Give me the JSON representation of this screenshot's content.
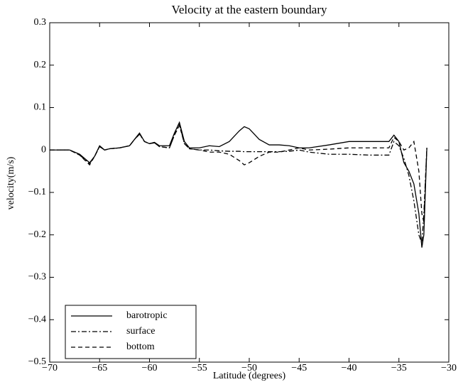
{
  "chart_data": {
    "type": "line",
    "title": "Velocity at the eastern boundary",
    "xlabel": "Latitude (degrees)",
    "ylabel": "velocity(m/s)",
    "x": [
      -70,
      -69,
      -68,
      -67,
      -66,
      -65.5,
      -65,
      -64.5,
      -64,
      -63,
      -62,
      -61.5,
      -61,
      -60.5,
      -60,
      -59.5,
      -59,
      -58,
      -57.5,
      -57,
      -56.5,
      -56,
      -55,
      -54,
      -53,
      -52,
      -51,
      -50.5,
      -50,
      -49,
      -48,
      -47,
      -46,
      -45,
      -44,
      -42,
      -40,
      -38,
      -36,
      -35.5,
      -35,
      -34.5,
      -34,
      -33.5,
      -33,
      -32.7,
      -32.5,
      -32.2
    ],
    "series": [
      {
        "name": "barotropic",
        "color": "#000000",
        "linestyle": "solid",
        "values": [
          0,
          0,
          0,
          -0.01,
          -0.03,
          -0.015,
          0.01,
          0,
          0.003,
          0.005,
          0.01,
          0.025,
          0.04,
          0.02,
          0.015,
          0.018,
          0.01,
          0.01,
          0.04,
          0.065,
          0.02,
          0.005,
          0.005,
          0.01,
          0.008,
          0.02,
          0.045,
          0.055,
          0.05,
          0.025,
          0.012,
          0.012,
          0.01,
          0.005,
          0.005,
          0.012,
          0.02,
          0.02,
          0.02,
          0.035,
          0.02,
          -0.03,
          -0.05,
          -0.08,
          -0.15,
          -0.23,
          -0.2,
          0.005
        ]
      },
      {
        "name": "surface",
        "color": "#000000",
        "linestyle": "dashdot",
        "values": [
          0,
          0,
          0,
          -0.012,
          -0.032,
          -0.015,
          0.008,
          0,
          0.003,
          0.005,
          0.01,
          0.025,
          0.037,
          0.02,
          0.015,
          0.017,
          0.008,
          0.005,
          0.035,
          0.06,
          0.015,
          0.003,
          0,
          0,
          -0.002,
          -0.003,
          -0.003,
          -0.004,
          -0.004,
          -0.004,
          -0.004,
          -0.004,
          -0.003,
          0,
          -0.005,
          -0.01,
          -0.01,
          -0.012,
          -0.012,
          0.02,
          0.01,
          -0.02,
          -0.06,
          -0.12,
          -0.2,
          -0.22,
          -0.15,
          0.005
        ]
      },
      {
        "name": "bottom",
        "color": "#000000",
        "linestyle": "dashed",
        "values": [
          0,
          0,
          0,
          -0.012,
          -0.035,
          -0.015,
          0.008,
          0,
          0.003,
          0.005,
          0.01,
          0.025,
          0.038,
          0.02,
          0.015,
          0.017,
          0.008,
          0.005,
          0.035,
          0.058,
          0.015,
          0.003,
          0,
          -0.005,
          -0.005,
          -0.01,
          -0.025,
          -0.035,
          -0.03,
          -0.015,
          -0.005,
          -0.005,
          0,
          0.005,
          0,
          0.002,
          0.005,
          0.005,
          0.005,
          0.03,
          0.02,
          0,
          0.005,
          0.02,
          -0.05,
          -0.15,
          -0.17,
          0.005
        ]
      }
    ],
    "xlim": [
      -70,
      -30
    ],
    "ylim": [
      -0.5,
      0.3
    ],
    "xticks": [
      {
        "value": -70,
        "label": "−70"
      },
      {
        "value": -65,
        "label": "−65"
      },
      {
        "value": -60,
        "label": "−60"
      },
      {
        "value": -55,
        "label": "−55"
      },
      {
        "value": -50,
        "label": "−50"
      },
      {
        "value": -45,
        "label": "−45"
      },
      {
        "value": -40,
        "label": "−40"
      },
      {
        "value": -35,
        "label": "−35"
      },
      {
        "value": -30,
        "label": "−30"
      }
    ],
    "yticks": [
      {
        "value": -0.5,
        "label": "−0.5"
      },
      {
        "value": -0.4,
        "label": "−0.4"
      },
      {
        "value": -0.3,
        "label": "−0.3"
      },
      {
        "value": -0.2,
        "label": "−0.2"
      },
      {
        "value": -0.1,
        "label": "−0.1"
      },
      0,
      0.1,
      0.2,
      0.3
    ],
    "grid": false,
    "legend": "lower left"
  }
}
